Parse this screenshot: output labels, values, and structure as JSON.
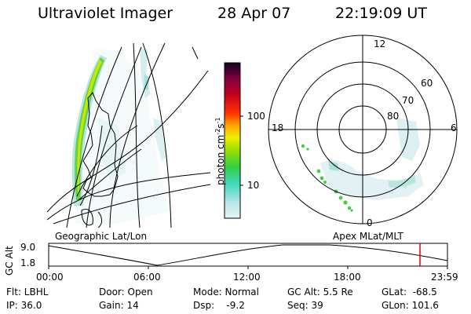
{
  "header": {
    "title": "Ultraviolet Imager",
    "date": "28 Apr 07",
    "time": "22:19:09 UT"
  },
  "colorbar": {
    "unit_label": "photon cm",
    "unit_exp1": "-2",
    "unit_s": "s",
    "unit_exp2": "-1",
    "ticks": [
      "100",
      "10"
    ]
  },
  "polar": {
    "mlt_labels": {
      "top": "12",
      "left": "18",
      "right": "6",
      "bottom": "0"
    },
    "lat_labels": [
      "60",
      "70",
      "80"
    ]
  },
  "panel_labels": {
    "left": "Geographic Lat/Lon",
    "right": "Apex MLat/MLT"
  },
  "timeline": {
    "ylabel": "GC Alt",
    "yticks": [
      "9.0",
      "1.8"
    ],
    "xticks": [
      "00:00",
      "06:00",
      "12:00",
      "18:00",
      "23:59"
    ],
    "marker_color": "#e00000"
  },
  "info": {
    "flt": "Flt: LBHL",
    "ip": "IP: 36.0",
    "door": "Door: Open",
    "gain": "Gain: 14",
    "mode": "Mode: Normal",
    "dsp": "Dsp:    -9.2",
    "gcalt": "GC Alt: 5.5 Re",
    "seq": "Seq: 39",
    "glat": "GLat:  -68.5",
    "glon": "GLon: 101.6"
  }
}
